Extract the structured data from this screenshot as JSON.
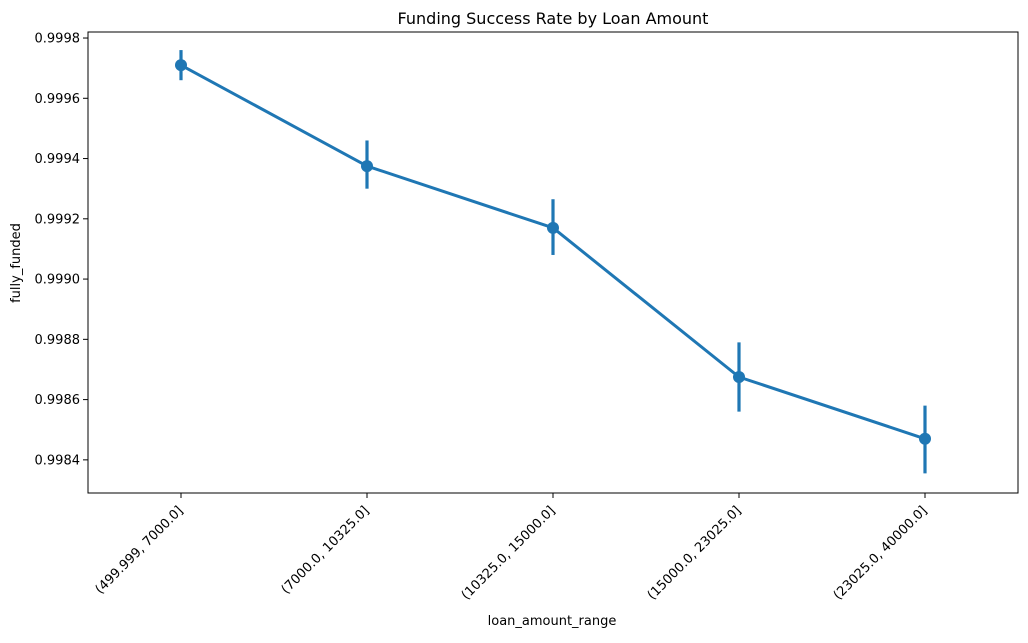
{
  "chart_data": {
    "type": "line",
    "title": "Funding Success Rate by Loan Amount",
    "xlabel": "loan_amount_range",
    "ylabel": "fully_funded",
    "categories": [
      "(499.999, 7000.0]",
      "(7000.0, 10325.0]",
      "(10325.0, 15000.0]",
      "(15000.0, 23025.0]",
      "(23025.0, 40000.0]"
    ],
    "series": [
      {
        "values": [
          0.99971,
          0.999375,
          0.99917,
          0.998675,
          0.99847
        ],
        "ci_low": [
          0.99966,
          0.9993,
          0.99908,
          0.99856,
          0.998355
        ],
        "ci_high": [
          0.99976,
          0.99946,
          0.999265,
          0.99879,
          0.99858
        ]
      }
    ],
    "ylim": [
      0.99829,
      0.99982
    ],
    "yticks": [
      "0.9984",
      "0.9986",
      "0.9988",
      "0.9990",
      "0.9992",
      "0.9994",
      "0.9996",
      "0.9998"
    ],
    "ytick_values": [
      0.9984,
      0.9986,
      0.9988,
      0.999,
      0.9992,
      0.9994,
      0.9996,
      0.9998
    ],
    "grid": false,
    "color": "#1f77b4"
  }
}
